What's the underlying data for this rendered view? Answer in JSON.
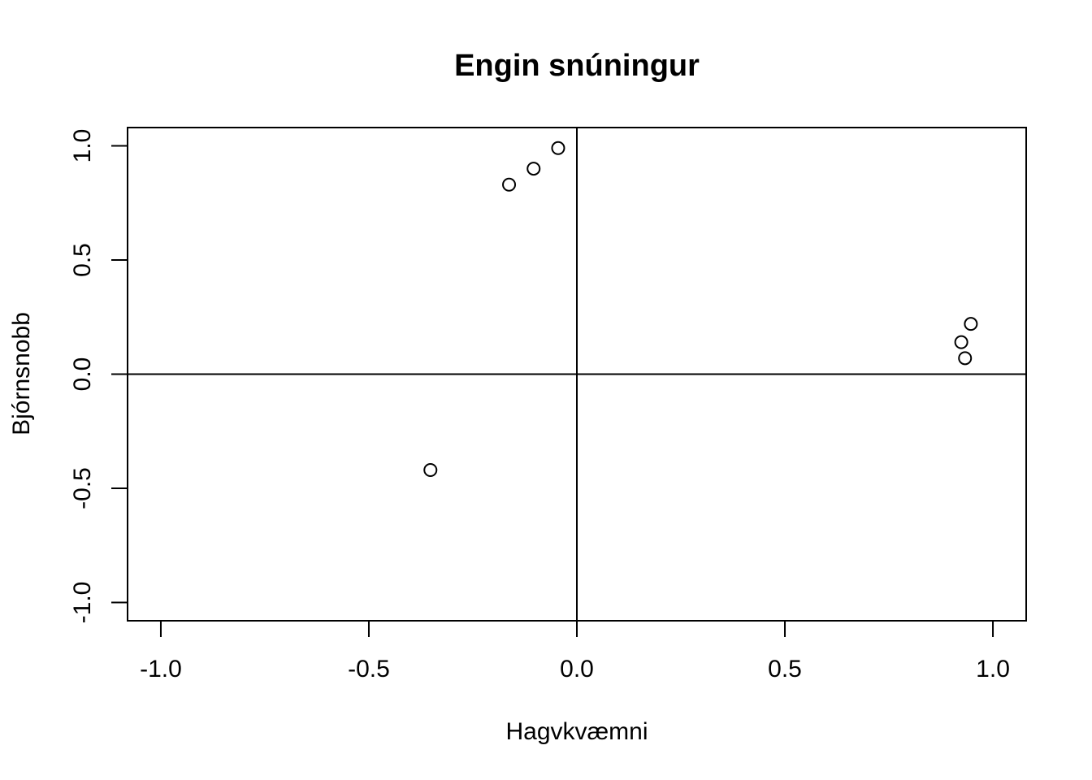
{
  "chart_data": {
    "type": "scatter",
    "title": "Engin snúningur",
    "xlabel": "Hagvkvæmni",
    "ylabel": "Bjórnsnobb",
    "xlim": [
      -1.08,
      1.08
    ],
    "ylim": [
      -1.08,
      1.08
    ],
    "xticks": [
      -1.0,
      -0.5,
      0.0,
      0.5,
      1.0
    ],
    "xtick_labels": [
      "-1.0",
      "-0.5",
      "0.0",
      "0.5",
      "1.0"
    ],
    "yticks": [
      -1.0,
      -0.5,
      0.0,
      0.5,
      1.0
    ],
    "ytick_labels": [
      "-1.0",
      "-0.5",
      "0.0",
      "0.5",
      "1.0"
    ],
    "reference_lines": {
      "x": 0,
      "y": 0
    },
    "grid": false,
    "marker": "open-circle",
    "points": [
      {
        "x": -0.045,
        "y": 0.99
      },
      {
        "x": -0.104,
        "y": 0.9
      },
      {
        "x": -0.163,
        "y": 0.83
      },
      {
        "x": -0.352,
        "y": -0.42
      },
      {
        "x": 0.947,
        "y": 0.22
      },
      {
        "x": 0.924,
        "y": 0.14
      },
      {
        "x": 0.933,
        "y": 0.07
      }
    ]
  }
}
